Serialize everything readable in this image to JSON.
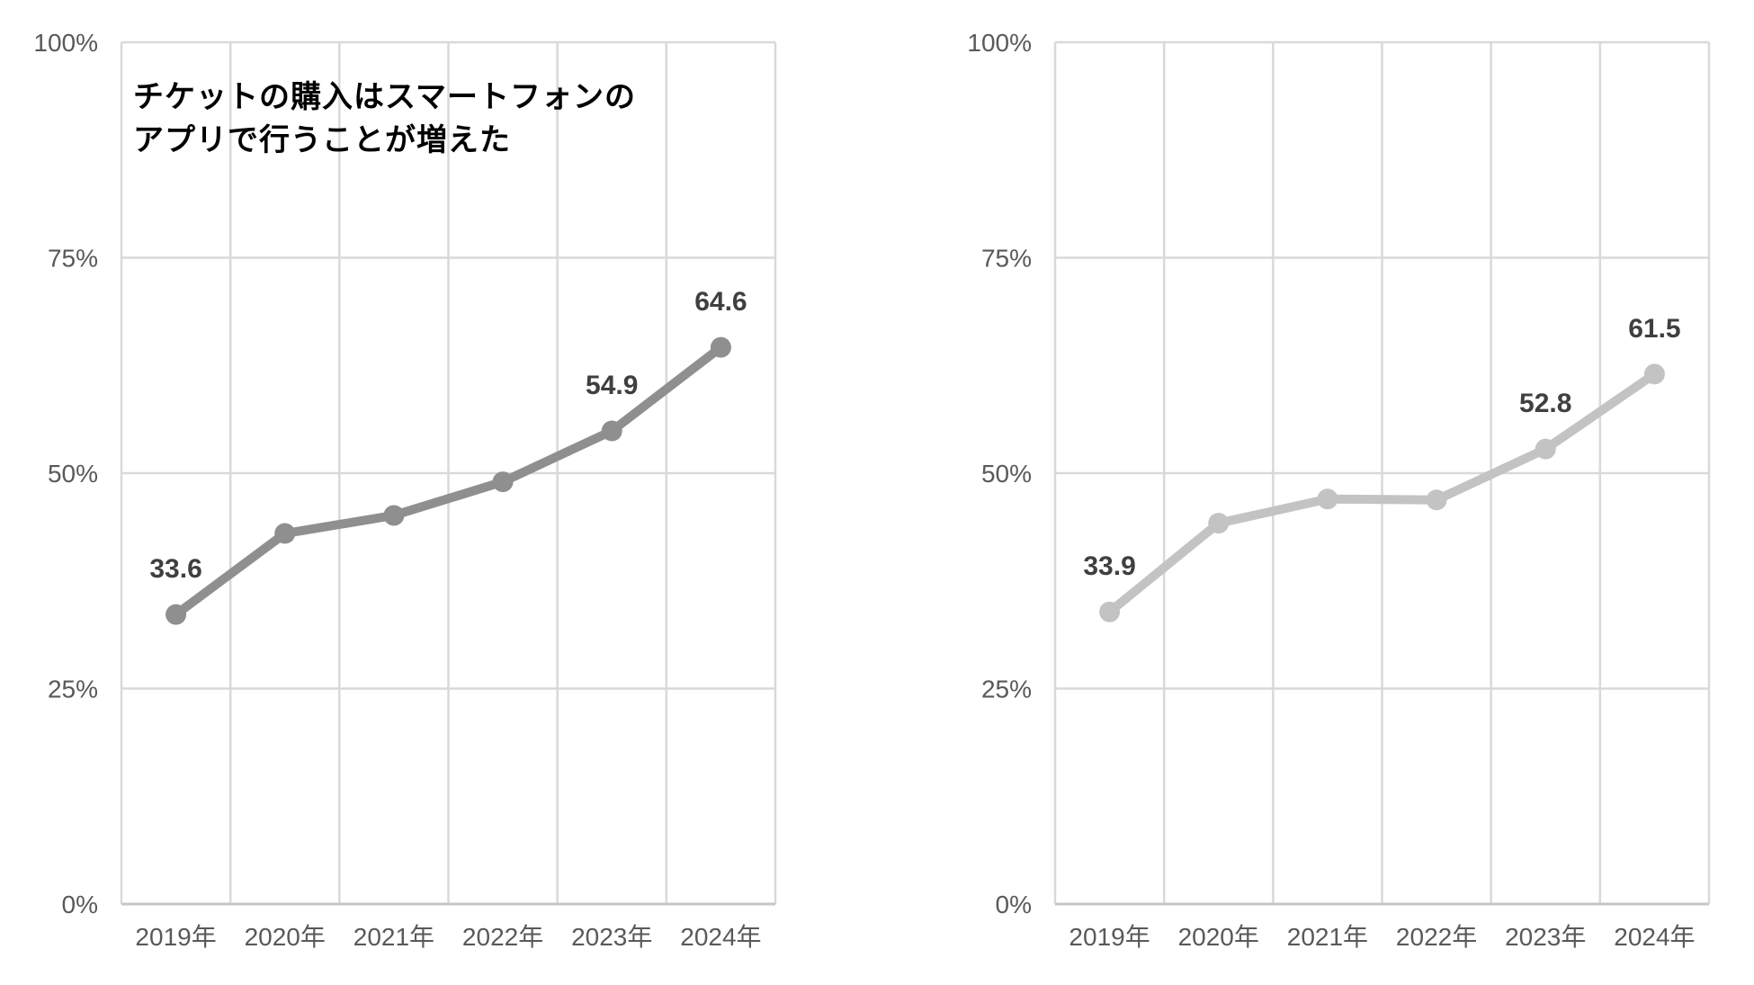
{
  "page": {
    "background": "#ffffff",
    "annotation": {
      "line1": "チケットの購入はスマートフォンの",
      "line2": "アプリで行うことが増えた"
    }
  },
  "chart_data": [
    {
      "type": "line",
      "title": "チケットの購入はスマートフォンのアプリで行うことが増えた",
      "categories": [
        "2019年",
        "2020年",
        "2021年",
        "2022年",
        "2023年",
        "2024年"
      ],
      "values": [
        33.6,
        43.0,
        45.1,
        49.0,
        54.9,
        64.6
      ],
      "data_labels": [
        {
          "index": 0,
          "text": "33.6"
        },
        {
          "index": 4,
          "text": "54.9"
        },
        {
          "index": 5,
          "text": "64.6"
        }
      ],
      "y_ticks": [
        {
          "value": 100,
          "label": "100%"
        },
        {
          "value": 75,
          "label": "75%"
        },
        {
          "value": 50,
          "label": "50%"
        },
        {
          "value": 25,
          "label": "25%"
        },
        {
          "value": 0,
          "label": "0%"
        }
      ],
      "ylim": [
        0,
        100
      ],
      "grid": true,
      "legend": "none",
      "line_color": "#8f8f8f"
    },
    {
      "type": "line",
      "title": "",
      "categories": [
        "2019年",
        "2020年",
        "2021年",
        "2022年",
        "2023年",
        "2024年"
      ],
      "values": [
        33.9,
        44.2,
        47.0,
        46.9,
        52.8,
        61.5
      ],
      "data_labels": [
        {
          "index": 0,
          "text": "33.9"
        },
        {
          "index": 4,
          "text": "52.8"
        },
        {
          "index": 5,
          "text": "61.5"
        }
      ],
      "y_ticks": [
        {
          "value": 100,
          "label": "100%"
        },
        {
          "value": 75,
          "label": "75%"
        },
        {
          "value": 50,
          "label": "50%"
        },
        {
          "value": 25,
          "label": "25%"
        },
        {
          "value": 0,
          "label": "0%"
        }
      ],
      "ylim": [
        0,
        100
      ],
      "grid": true,
      "legend": "none",
      "line_color": "#c3c3c3"
    }
  ],
  "style": {
    "gridline_color": "#d9d9d9",
    "axis_line_color": "#c6c6c6",
    "tick_label_color": "#595959",
    "data_label_color": "#3f3f3f"
  }
}
